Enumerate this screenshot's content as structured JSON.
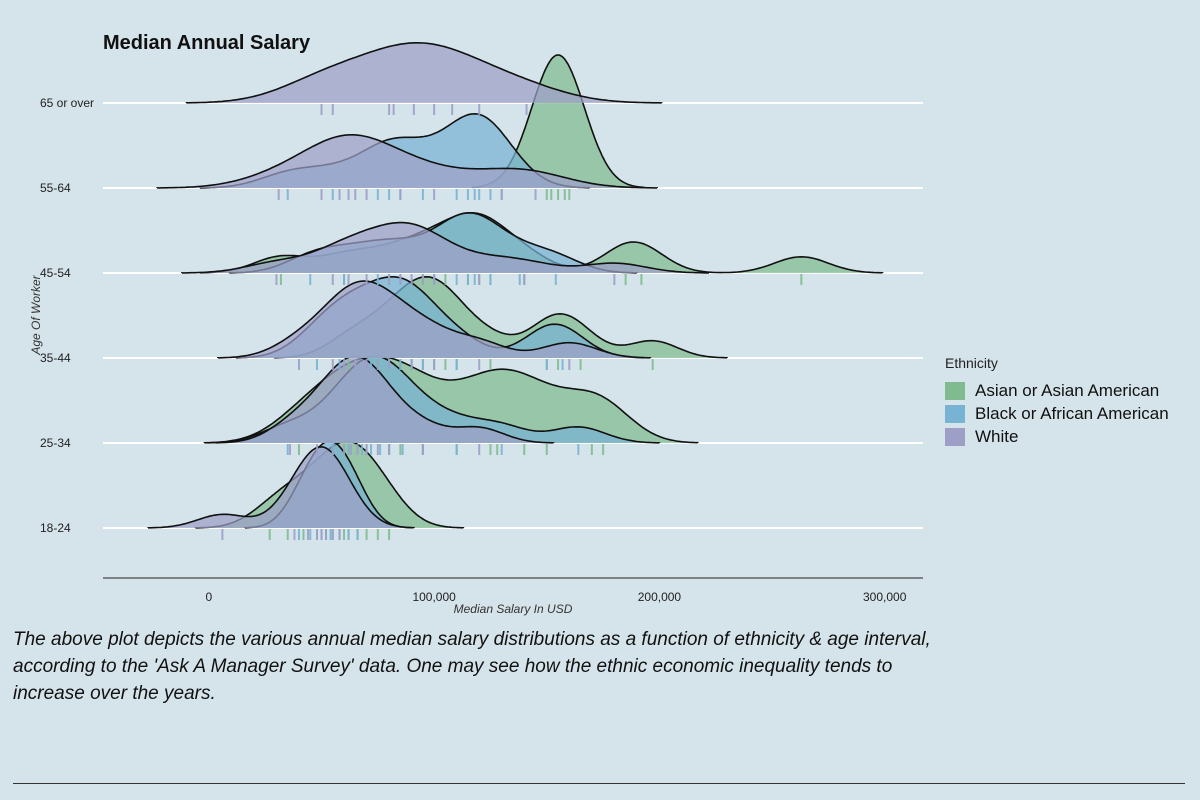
{
  "chart_data": {
    "type": "ridgeline-density",
    "title": "Median Annual Salary",
    "xlabel": "Median Salary In USD",
    "ylabel": "Age Of Worker",
    "caption": "The above plot depicts the various annual median salary distributions as a function of ethnicity & age interval, according to the 'Ask A Manager Survey' data. One may see how the ethnic economic inequality tends to increase over the years.",
    "xlim": [
      -47000,
      317000
    ],
    "x_ticks": [
      0,
      100000,
      200000,
      300000
    ],
    "x_tick_labels": [
      "0",
      "100,000",
      "200,000",
      "300,000"
    ],
    "categories": [
      "18-24",
      "25-34",
      "35-44",
      "45-54",
      "55-64",
      "65 or over"
    ],
    "legend": {
      "title": "Ethnicity",
      "placement": "right"
    },
    "series": [
      {
        "name": "Asian or Asian American",
        "color": "#7fbb8f",
        "groups": {
          "18-24": {
            "samples": [
              27000,
              35000,
              42000,
              48000,
              55000,
              58000,
              60000,
              62000,
              66000,
              70000,
              75000,
              80000
            ],
            "bandwidth": 11000,
            "height": 0.62
          },
          "25-34": {
            "samples": [
              40000,
              55000,
              62000,
              70000,
              80000,
              85000,
              95000,
              110000,
              125000,
              128000,
              140000,
              150000,
              170000,
              175000
            ],
            "bandwidth": 14000,
            "height": 0.62
          },
          "35-44": {
            "samples": [
              62000,
              75000,
              85000,
              90000,
              95000,
              100000,
              105000,
              110000,
              125000,
              150000,
              155000,
              165000,
              197000
            ],
            "bandwidth": 11000,
            "height": 0.58
          },
          "45-54": {
            "samples": [
              32000,
              60000,
              80000,
              95000,
              105000,
              115000,
              120000,
              125000,
              140000,
              185000,
              192000,
              263000
            ],
            "bandwidth": 12000,
            "height": 0.43
          },
          "55-64": {
            "samples": [
              150000,
              152000,
              155000,
              158000,
              160000
            ],
            "bandwidth": 11000,
            "height": 0.95
          }
        }
      },
      {
        "name": "Black or African American",
        "color": "#79b3d4",
        "groups": {
          "18-24": {
            "samples": [
              40000,
              45000,
              50000,
              52000,
              54000,
              58000,
              62000,
              66000
            ],
            "bandwidth": 8000,
            "height": 0.62
          },
          "25-34": {
            "samples": [
              35000,
              55000,
              62000,
              68000,
              72000,
              76000,
              80000,
              86000,
              95000,
              110000,
              130000,
              164000
            ],
            "bandwidth": 12000,
            "height": 0.62
          },
          "35-44": {
            "samples": [
              48000,
              58000,
              65000,
              72000,
              80000,
              85000,
              90000,
              95000,
              110000,
              150000,
              157000
            ],
            "bandwidth": 12000,
            "height": 0.58
          },
          "45-54": {
            "samples": [
              45000,
              60000,
              75000,
              85000,
              100000,
              110000,
              115000,
              118000,
              125000,
              138000,
              154000
            ],
            "bandwidth": 12000,
            "height": 0.43
          },
          "55-64": {
            "samples": [
              35000,
              55000,
              75000,
              80000,
              85000,
              95000,
              110000,
              115000,
              118000,
              120000,
              125000,
              130000
            ],
            "bandwidth": 13000,
            "height": 0.53
          }
        }
      },
      {
        "name": "White",
        "color": "#9d9fc6",
        "groups": {
          "18-24": {
            "samples": [
              6000,
              38000,
              44000,
              48000,
              50000,
              52000,
              55000,
              58000
            ],
            "bandwidth": 11000,
            "height": 0.58
          },
          "25-34": {
            "samples": [
              36000,
              48000,
              55000,
              60000,
              63000,
              66000,
              70000,
              75000,
              80000,
              95000,
              120000
            ],
            "bandwidth": 11000,
            "height": 0.62
          },
          "35-44": {
            "samples": [
              40000,
              55000,
              60000,
              65000,
              70000,
              75000,
              80000,
              90000,
              100000,
              120000,
              160000
            ],
            "bandwidth": 12000,
            "height": 0.55
          },
          "45-54": {
            "samples": [
              30000,
              55000,
              62000,
              70000,
              80000,
              85000,
              90000,
              95000,
              100000,
              120000,
              140000,
              180000
            ],
            "bandwidth": 14000,
            "height": 0.36
          },
          "55-64": {
            "samples": [
              31000,
              50000,
              58000,
              62000,
              65000,
              70000,
              85000,
              100000,
              130000,
              145000
            ],
            "bandwidth": 18000,
            "height": 0.38
          },
          "65 or over": {
            "samples": [
              50000,
              55000,
              80000,
              82000,
              91000,
              100000,
              108000,
              120000,
              141000
            ],
            "bandwidth": 20000,
            "height": 0.43
          }
        }
      }
    ]
  }
}
